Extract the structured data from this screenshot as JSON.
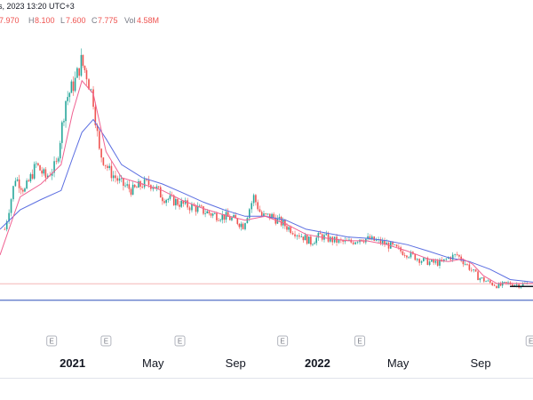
{
  "header": {
    "title_fragment": "s, 2023 13:20 UTC+3",
    "open_value": "7.970",
    "high_label": "H",
    "high_value": "8.100",
    "low_label": "L",
    "low_value": "7.600",
    "close_label": "C",
    "close_value": "7.775",
    "volume_label": "Vol",
    "volume_value": "4.58M"
  },
  "colors": {
    "up": "#26a69a",
    "down": "#ef5350",
    "ma_short": "#f06292",
    "ma_long": "#5b6ee1",
    "support_line": "#5470c6",
    "price_line": "#f4b6b6"
  },
  "chart_data": {
    "type": "candlestick",
    "x_ticks": [
      {
        "label": "2021",
        "date": "2021-01-01",
        "bold": true
      },
      {
        "label": "May",
        "date": "2021-05-01",
        "bold": false
      },
      {
        "label": "Sep",
        "date": "2021-09-01",
        "bold": false
      },
      {
        "label": "2022",
        "date": "2022-01-01",
        "bold": true
      },
      {
        "label": "May",
        "date": "2022-05-01",
        "bold": false
      },
      {
        "label": "Sep",
        "date": "2022-09-01",
        "bold": false
      }
    ],
    "x_range": [
      "2020-09-15",
      "2022-11-18"
    ],
    "y_range": [
      6,
      27
    ],
    "earnings_label": "E",
    "earnings_dates": [
      "2020-12-01",
      "2021-02-20",
      "2021-06-10",
      "2021-11-10",
      "2022-03-05",
      "2022-11-15"
    ],
    "series": [
      {
        "type": "candles",
        "points": [
          [
            "2020-09-22",
            12.0
          ],
          [
            "2020-10-08",
            16.0
          ],
          [
            "2020-10-22",
            15.0
          ],
          [
            "2020-11-08",
            17.0
          ],
          [
            "2020-11-22",
            16.0
          ],
          [
            "2020-12-08",
            17.0
          ],
          [
            "2020-12-22",
            22.0
          ],
          [
            "2021-01-05",
            23.5
          ],
          [
            "2021-01-14",
            25.0
          ],
          [
            "2021-01-22",
            24.0
          ],
          [
            "2021-02-01",
            22.0
          ],
          [
            "2021-02-10",
            18.0
          ],
          [
            "2021-02-25",
            16.5
          ],
          [
            "2021-03-15",
            15.5
          ],
          [
            "2021-04-01",
            15.0
          ],
          [
            "2021-04-15",
            15.5
          ],
          [
            "2021-05-01",
            15.5
          ],
          [
            "2021-05-15",
            14.5
          ],
          [
            "2021-06-01",
            14.2
          ],
          [
            "2021-06-15",
            13.9
          ],
          [
            "2021-07-01",
            13.7
          ],
          [
            "2021-07-15",
            13.4
          ],
          [
            "2021-08-01",
            13.1
          ],
          [
            "2021-08-15",
            13.0
          ],
          [
            "2021-09-01",
            12.7
          ],
          [
            "2021-09-12",
            12.3
          ],
          [
            "2021-09-28",
            14.5
          ],
          [
            "2021-10-10",
            13.0
          ],
          [
            "2021-10-25",
            13.0
          ],
          [
            "2021-11-08",
            12.5
          ],
          [
            "2021-11-22",
            12.0
          ],
          [
            "2021-12-08",
            11.5
          ],
          [
            "2021-12-22",
            11.0
          ],
          [
            "2022-01-05",
            11.5
          ],
          [
            "2022-01-20",
            11.2
          ],
          [
            "2022-02-05",
            11.0
          ],
          [
            "2022-02-20",
            11.0
          ],
          [
            "2022-03-05",
            11.3
          ],
          [
            "2022-03-20",
            11.2
          ],
          [
            "2022-04-05",
            11.0
          ],
          [
            "2022-04-20",
            10.7
          ],
          [
            "2022-05-05",
            10.3
          ],
          [
            "2022-05-20",
            10.0
          ],
          [
            "2022-06-05",
            9.6
          ],
          [
            "2022-06-20",
            9.4
          ],
          [
            "2022-07-05",
            9.4
          ],
          [
            "2022-07-15",
            9.8
          ],
          [
            "2022-07-28",
            10.0
          ],
          [
            "2022-08-12",
            9.2
          ],
          [
            "2022-08-28",
            8.3
          ],
          [
            "2022-09-12",
            7.9
          ],
          [
            "2022-09-28",
            7.6
          ],
          [
            "2022-10-12",
            7.8
          ],
          [
            "2022-10-28",
            7.7
          ],
          [
            "2022-11-12",
            7.8
          ]
        ]
      },
      {
        "type": "ma_short",
        "points": [
          [
            "2020-09-15",
            10.0
          ],
          [
            "2020-10-15",
            14.5
          ],
          [
            "2020-11-15",
            15.5
          ],
          [
            "2020-12-15",
            17.0
          ],
          [
            "2021-01-01",
            21.0
          ],
          [
            "2021-01-15",
            23.5
          ],
          [
            "2021-02-01",
            22.5
          ],
          [
            "2021-02-20",
            18.0
          ],
          [
            "2021-03-15",
            16.0
          ],
          [
            "2021-04-15",
            15.5
          ],
          [
            "2021-05-15",
            15.0
          ],
          [
            "2021-06-15",
            14.2
          ],
          [
            "2021-07-15",
            13.6
          ],
          [
            "2021-08-15",
            13.1
          ],
          [
            "2021-09-15",
            12.7
          ],
          [
            "2021-10-15",
            13.0
          ],
          [
            "2021-11-15",
            12.4
          ],
          [
            "2021-12-15",
            11.6
          ],
          [
            "2022-01-15",
            11.3
          ],
          [
            "2022-02-15",
            11.1
          ],
          [
            "2022-03-15",
            11.1
          ],
          [
            "2022-04-15",
            10.8
          ],
          [
            "2022-05-15",
            10.3
          ],
          [
            "2022-06-15",
            9.7
          ],
          [
            "2022-07-15",
            9.5
          ],
          [
            "2022-08-05",
            9.7
          ],
          [
            "2022-08-20",
            9.3
          ],
          [
            "2022-09-05",
            8.4
          ],
          [
            "2022-09-25",
            7.8
          ],
          [
            "2022-10-15",
            7.8
          ],
          [
            "2022-11-18",
            7.8
          ]
        ]
      },
      {
        "type": "ma_long",
        "points": [
          [
            "2020-09-15",
            12.0
          ],
          [
            "2020-10-15",
            13.5
          ],
          [
            "2020-11-15",
            14.3
          ],
          [
            "2020-12-15",
            15.0
          ],
          [
            "2021-01-01",
            17.5
          ],
          [
            "2021-01-15",
            19.5
          ],
          [
            "2021-02-01",
            20.5
          ],
          [
            "2021-02-20",
            19.0
          ],
          [
            "2021-03-15",
            17.0
          ],
          [
            "2021-04-15",
            16.0
          ],
          [
            "2021-05-15",
            15.5
          ],
          [
            "2021-06-15",
            14.8
          ],
          [
            "2021-07-15",
            14.1
          ],
          [
            "2021-08-15",
            13.5
          ],
          [
            "2021-09-15",
            13.0
          ],
          [
            "2021-10-15",
            13.0
          ],
          [
            "2021-11-15",
            12.7
          ],
          [
            "2021-12-15",
            12.0
          ],
          [
            "2022-01-15",
            11.7
          ],
          [
            "2022-02-15",
            11.4
          ],
          [
            "2022-03-15",
            11.3
          ],
          [
            "2022-04-15",
            11.1
          ],
          [
            "2022-05-15",
            10.8
          ],
          [
            "2022-06-15",
            10.3
          ],
          [
            "2022-07-15",
            9.8
          ],
          [
            "2022-08-15",
            9.5
          ],
          [
            "2022-09-15",
            8.9
          ],
          [
            "2022-10-15",
            8.1
          ],
          [
            "2022-11-18",
            7.9
          ]
        ]
      }
    ],
    "support_level": 6.5,
    "current_price": 7.775
  }
}
